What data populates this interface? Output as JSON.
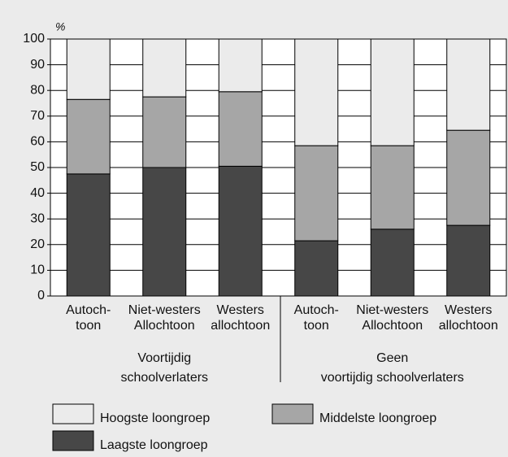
{
  "chart_data": {
    "type": "stacked_bar",
    "y_unit": "%",
    "categories": [
      [
        "Autoch-",
        "toon"
      ],
      [
        "Niet-westers",
        "Allochtoon"
      ],
      [
        "Westers",
        "allochtoon"
      ],
      [
        "Autoch-",
        "toon"
      ],
      [
        "Niet-westers",
        "Allochtoon"
      ],
      [
        "Westers",
        "allochtoon"
      ]
    ],
    "groups": [
      [
        "Voortijdig",
        "schoolverlaters"
      ],
      [
        "Geen",
        "voortijdig schoolverlaters"
      ]
    ],
    "series": [
      {
        "name": "Laagste loongroep",
        "color": "#474747",
        "values": [
          47.5,
          50,
          50.5,
          21.5,
          26,
          27.5
        ]
      },
      {
        "name": "Middelste loongroep",
        "color": "#a6a6a6",
        "values": [
          29,
          27.5,
          29,
          37,
          32.5,
          37
        ]
      },
      {
        "name": "Hoogste loongroep",
        "color": "#ebebeb",
        "values": [
          23.5,
          22.5,
          20.5,
          41.5,
          41.5,
          35.5
        ]
      }
    ],
    "ylim": [
      0,
      100
    ],
    "yticks": [
      0,
      10,
      20,
      30,
      40,
      50,
      60,
      70,
      80,
      90,
      100
    ],
    "grid": true
  }
}
